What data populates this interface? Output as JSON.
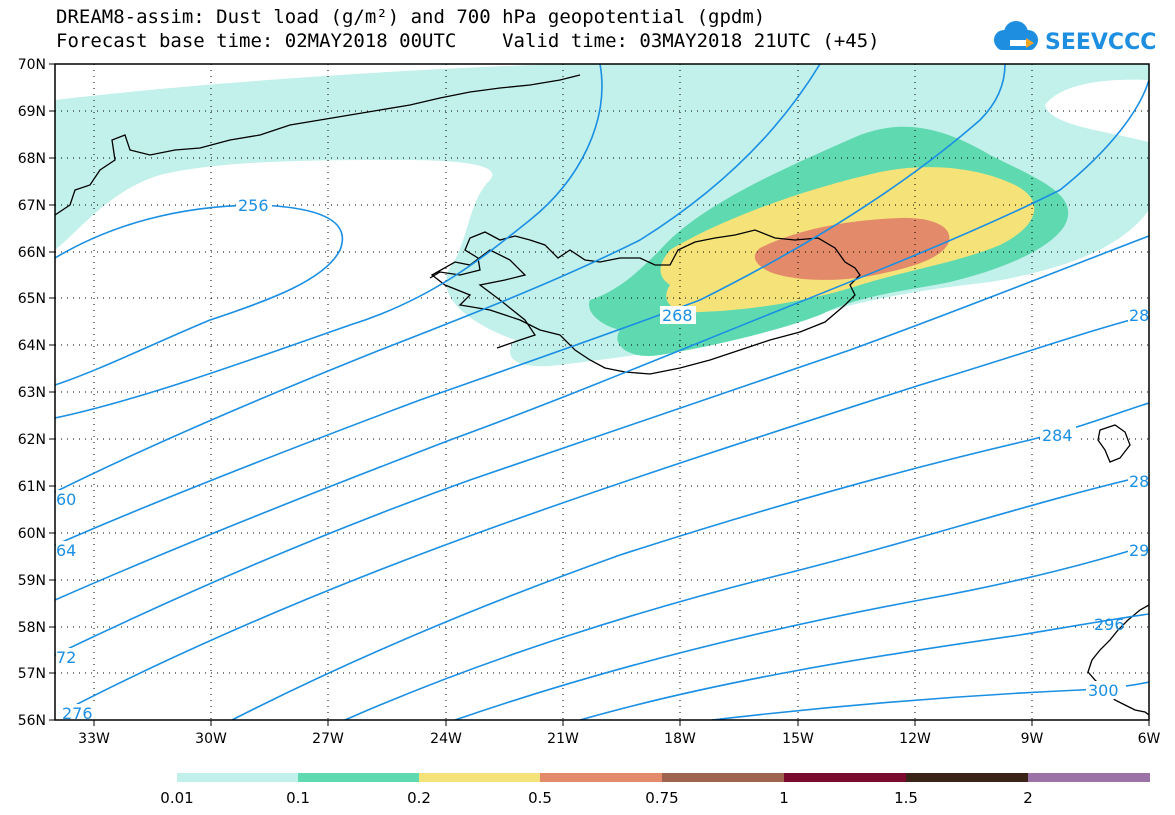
{
  "title_line1": "DREAM8-assim: Dust load (g/m²) and 700 hPa geopotential (gpdm)",
  "title_line2": "Forecast base time: 02MAY2018 00UTC    Valid time: 03MAY2018 21UTC (+45)",
  "logo_text": "SEEVCCC",
  "colors": {
    "contour": "#1a8fe3",
    "dust_001": "#c2f0ea",
    "dust_01": "#5fd9b0",
    "dust_02": "#f5e37a",
    "dust_05": "#e38a6a",
    "dust_075": "#9e6450",
    "dust_1": "#7a0a2e",
    "dust_15": "#3a2418",
    "dust_2": "#9a72a6",
    "coast": "#000000",
    "logo": "#1e8fe0"
  },
  "latitude_labels": [
    "70N",
    "69N",
    "68N",
    "67N",
    "66N",
    "65N",
    "64N",
    "63N",
    "62N",
    "61N",
    "60N",
    "59N",
    "58N",
    "57N",
    "56N"
  ],
  "longitude_labels": [
    "33W",
    "30W",
    "27W",
    "24W",
    "21W",
    "18W",
    "15W",
    "12W",
    "9W",
    "6W"
  ],
  "contour_labels": [
    "256",
    "268",
    "284",
    "60",
    "64",
    "72",
    "276",
    "28",
    "28",
    "29",
    "296",
    "300"
  ],
  "legend": {
    "colors": [
      "#c2f0ea",
      "#5fd9b0",
      "#f5e37a",
      "#e38a6a",
      "#9e6450",
      "#7a0a2e",
      "#3a2418",
      "#9a72a6"
    ],
    "labels": [
      "0.01",
      "0.1",
      "0.2",
      "0.5",
      "0.75",
      "1",
      "1.5",
      "2"
    ]
  }
}
